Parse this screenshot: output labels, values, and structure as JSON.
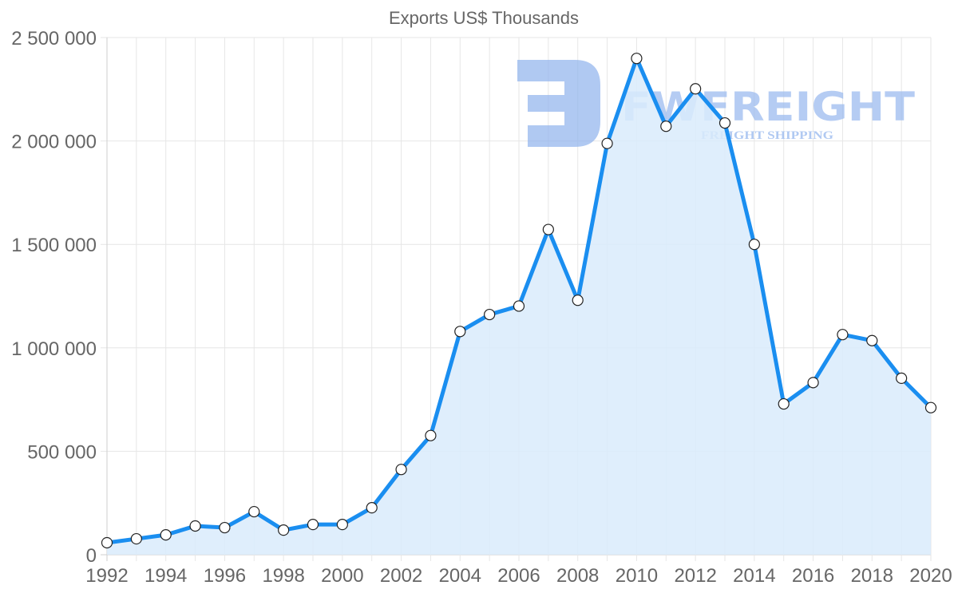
{
  "chart_data": {
    "type": "area",
    "title": "Exports US$ Thousands",
    "xlabel": "",
    "ylabel": "",
    "x": [
      1992,
      1993,
      1994,
      1995,
      1996,
      1997,
      1998,
      1999,
      2000,
      2001,
      2002,
      2003,
      2004,
      2005,
      2006,
      2007,
      2008,
      2009,
      2010,
      2011,
      2012,
      2013,
      2014,
      2015,
      2016,
      2017,
      2018,
      2019,
      2020
    ],
    "series": [
      {
        "name": "Exports US$ Thousands",
        "values": [
          58000,
          77000,
          96000,
          139000,
          131000,
          208000,
          119000,
          146000,
          146000,
          227000,
          412000,
          576000,
          1079000,
          1161000,
          1202000,
          1572000,
          1230000,
          1988000,
          2399000,
          2071000,
          2252000,
          2087000,
          1500000,
          729000,
          832000,
          1064000,
          1035000,
          853000,
          711000
        ],
        "line_color": "#1a8ef0",
        "fill_color": "#d9ebfc"
      }
    ],
    "xticks": [
      "1992",
      "1994",
      "1996",
      "1998",
      "2000",
      "2002",
      "2004",
      "2006",
      "2008",
      "2010",
      "2012",
      "2014",
      "2016",
      "2018",
      "2020"
    ],
    "yticks": [
      "0",
      "500 000",
      "1 000 000",
      "1 500 000",
      "2 000 000",
      "2 500 000"
    ],
    "ytick_values": [
      0,
      500000,
      1000000,
      1500000,
      2000000,
      2500000
    ],
    "ylim": [
      0,
      2500000
    ],
    "xlim": [
      1992,
      2020
    ],
    "grid": true,
    "legend": "none"
  },
  "watermark": {
    "brand": "FWFREIGHT",
    "tagline": "FREIGHT SHIPPING"
  }
}
